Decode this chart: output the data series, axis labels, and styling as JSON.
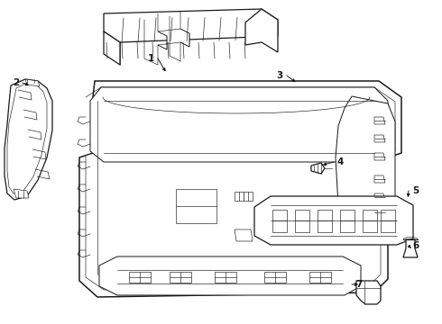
{
  "bg_color": "#ffffff",
  "line_color": "#1a1a1a",
  "line_width": 0.9,
  "thin_lw": 0.45,
  "label_fontsize": 7.5
}
